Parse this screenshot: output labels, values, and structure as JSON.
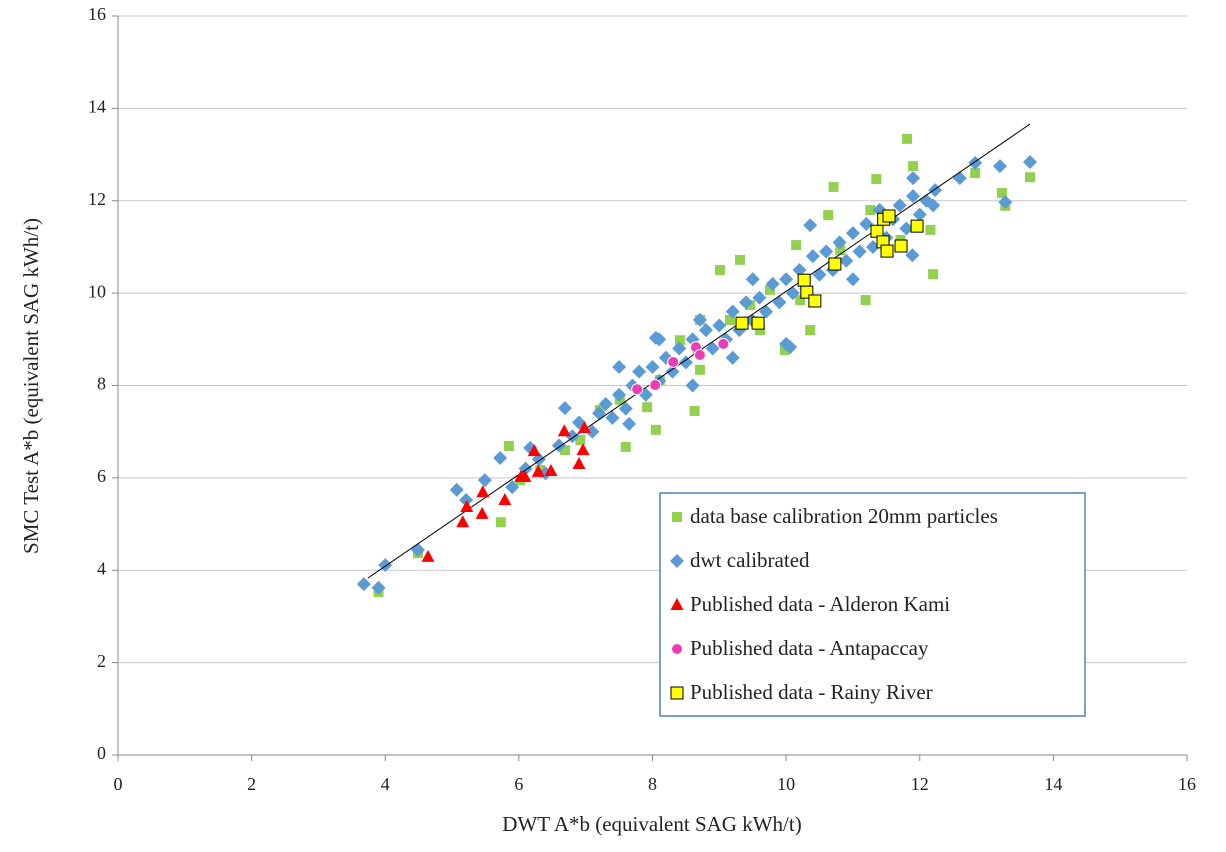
{
  "chart_data": {
    "type": "scatter",
    "x_label": "DWT A*b (equivalent SAG kWh/t)",
    "y_label": "SMC Test A*b (equivalent SAG kWh/t)",
    "xlim": [
      0,
      16
    ],
    "ylim": [
      0,
      16
    ],
    "xticks": [
      0,
      2,
      4,
      6,
      8,
      10,
      12,
      14,
      16
    ],
    "yticks": [
      0,
      2,
      4,
      6,
      8,
      10,
      12,
      14,
      16
    ],
    "grid": true,
    "legend": "lower-right",
    "trendline": {
      "x": [
        3.74,
        13.65
      ],
      "y": [
        3.83,
        13.66
      ],
      "color": "#000000"
    },
    "series": [
      {
        "name": "data base calibration 20mm particles",
        "color": "#92d050",
        "marker": "square",
        "x": [
          11.81,
          11.9,
          13.65,
          13.23,
          13.28,
          12.83,
          12.2,
          3.9,
          4.49,
          5.73,
          5.85,
          7.6,
          8.63,
          8.05,
          7.92,
          10.15,
          10.63,
          10.71,
          11.35,
          11.19,
          9.46,
          9.98,
          7.21,
          6.69,
          8.71,
          9.01,
          9.31,
          8.41,
          9.76,
          10.21,
          10.81,
          11.26,
          11.71,
          12.16,
          8.11,
          7.51,
          6.92,
          6.32,
          6.02,
          9.61,
          10.36,
          8.71,
          9.16
        ],
        "values": [
          13.34,
          12.75,
          12.51,
          12.17,
          11.89,
          12.6,
          10.41,
          3.53,
          4.37,
          5.04,
          6.69,
          6.67,
          7.45,
          7.04,
          7.53,
          11.04,
          11.69,
          12.3,
          12.47,
          9.85,
          9.74,
          8.77,
          7.47,
          6.6,
          9.42,
          10.5,
          10.72,
          8.98,
          10.07,
          9.85,
          10.93,
          11.8,
          11.15,
          11.37,
          8.12,
          7.69,
          6.82,
          6.17,
          5.95,
          9.2,
          9.2,
          8.34,
          9.42
        ]
      },
      {
        "name": "dwt calibrated",
        "color": "#5b9bd5",
        "marker": "diamond",
        "x": [
          3.68,
          3.9,
          4.0,
          4.49,
          5.07,
          5.21,
          5.49,
          5.72,
          6.17,
          6.69,
          13.65,
          13.2,
          12.83,
          13.28,
          12.6,
          12.23,
          11.9,
          11.89,
          10.06,
          7.65,
          8.05,
          8.71,
          10.36,
          5.9,
          6.1,
          6.3,
          6.4,
          6.6,
          6.8,
          6.9,
          7.1,
          7.2,
          7.3,
          7.4,
          7.5,
          7.6,
          7.7,
          7.8,
          7.9,
          8.0,
          8.1,
          8.2,
          8.3,
          8.4,
          8.5,
          8.6,
          8.7,
          8.8,
          8.9,
          9.0,
          9.1,
          9.2,
          9.3,
          9.4,
          9.5,
          9.6,
          9.7,
          9.8,
          9.9,
          10.0,
          10.1,
          10.2,
          10.3,
          10.4,
          10.5,
          10.6,
          10.7,
          10.8,
          10.9,
          11.0,
          11.1,
          11.2,
          11.3,
          11.4,
          11.5,
          11.6,
          11.7,
          11.8,
          11.9,
          12.0,
          12.2,
          12.1,
          9.5,
          8.1,
          7.5,
          10.0,
          11.0,
          9.2,
          8.6
        ],
        "values": [
          3.7,
          3.62,
          4.11,
          4.44,
          5.74,
          5.52,
          5.95,
          6.43,
          6.65,
          7.51,
          12.84,
          12.75,
          12.82,
          11.97,
          12.49,
          12.23,
          12.49,
          10.82,
          8.83,
          7.17,
          9.03,
          9.42,
          11.47,
          5.8,
          6.2,
          6.4,
          6.1,
          6.7,
          6.9,
          7.2,
          7.0,
          7.4,
          7.6,
          7.3,
          7.8,
          7.5,
          8.0,
          8.3,
          7.8,
          8.4,
          8.1,
          8.6,
          8.3,
          8.8,
          8.5,
          9.0,
          8.7,
          9.2,
          8.8,
          9.3,
          9.0,
          9.6,
          9.2,
          9.8,
          9.4,
          9.9,
          9.6,
          10.2,
          9.8,
          10.3,
          10.0,
          10.5,
          10.1,
          10.8,
          10.4,
          10.9,
          10.5,
          11.1,
          10.7,
          11.3,
          10.9,
          11.5,
          11.0,
          11.8,
          11.2,
          11.6,
          11.9,
          11.4,
          12.1,
          11.7,
          11.9,
          12.0,
          10.3,
          9.0,
          8.4,
          8.9,
          10.3,
          8.6,
          8.0
        ]
      },
      {
        "name": "Published data - Alderon Kami",
        "color": "#ff0000",
        "marker": "triangle",
        "x": [
          4.64,
          5.16,
          5.22,
          5.45,
          5.46,
          5.79,
          6.03,
          6.09,
          6.23,
          6.29,
          6.48,
          6.68,
          6.9,
          6.96,
          6.98
        ],
        "values": [
          4.29,
          5.04,
          5.37,
          5.22,
          5.69,
          5.52,
          6.02,
          6.02,
          6.58,
          6.13,
          6.15,
          7.01,
          6.3,
          6.6,
          7.08
        ]
      },
      {
        "name": "Published data - Antapaccay",
        "color": "#f03cb4",
        "marker": "circle",
        "x": [
          7.77,
          8.04,
          8.31,
          8.65,
          8.71,
          9.06
        ],
        "values": [
          7.92,
          8.01,
          8.51,
          8.83,
          8.66,
          8.9
        ]
      },
      {
        "name": "Published data - Rainy River",
        "color": "#ffff00",
        "marker": "square-outline",
        "x": [
          9.34,
          9.58,
          10.27,
          10.31,
          10.43,
          10.73,
          11.36,
          11.45,
          11.46,
          11.51,
          11.54,
          11.72,
          11.96
        ],
        "values": [
          9.35,
          9.35,
          10.28,
          10.02,
          9.83,
          10.63,
          11.34,
          11.11,
          11.6,
          10.91,
          11.67,
          11.02,
          11.45
        ]
      }
    ]
  }
}
